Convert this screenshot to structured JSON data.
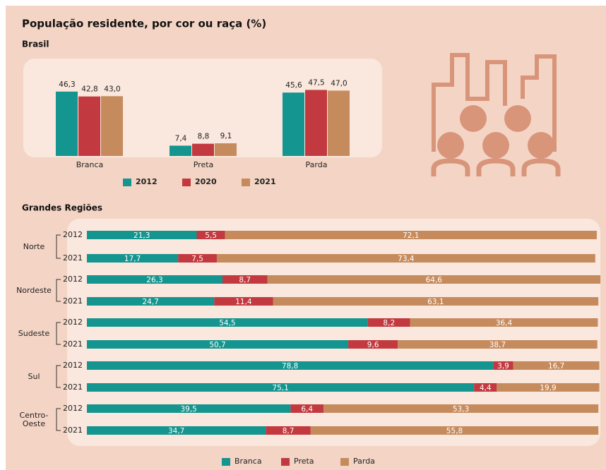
{
  "chart_data": [
    {
      "type": "bar",
      "title": "População residente, por cor ou raça (%)",
      "subtitle": "Brasil",
      "categories": [
        "Branca",
        "Preta",
        "Parda"
      ],
      "series": [
        {
          "name": "2012",
          "color": "#14958f",
          "values": [
            46.3,
            7.4,
            45.6
          ],
          "value_labels": [
            "46,3",
            "7,4",
            "45,6"
          ]
        },
        {
          "name": "2020",
          "color": "#c2393f",
          "values": [
            42.8,
            8.8,
            47.5
          ],
          "value_labels": [
            "42,8",
            "8,8",
            "47,5"
          ]
        },
        {
          "name": "2021",
          "color": "#c68b5d",
          "values": [
            43.0,
            9.1,
            47.0
          ],
          "value_labels": [
            "43,0",
            "9,1",
            "47,0"
          ]
        }
      ]
    },
    {
      "type": "stacked-hbar",
      "subtitle": "Grandes Regiões",
      "regions": [
        "Norte",
        "Nordeste",
        "Sudeste",
        "Sul",
        "Centro-Oeste"
      ],
      "categories": [
        "2012",
        "2021",
        "2012",
        "2021",
        "2012",
        "2021",
        "2012",
        "2021",
        "2012",
        "2021"
      ],
      "series": [
        {
          "name": "Branca",
          "color": "#14958f",
          "values": [
            21.3,
            17.7,
            26.3,
            24.7,
            54.5,
            50.7,
            78.8,
            75.1,
            39.5,
            34.7
          ],
          "value_labels": [
            "21,3",
            "17,7",
            "26,3",
            "24,7",
            "54,5",
            "50,7",
            "78,8",
            "75,1",
            "39,5",
            "34,7"
          ]
        },
        {
          "name": "Preta",
          "color": "#c2393f",
          "values": [
            5.5,
            7.5,
            8.7,
            11.4,
            8.2,
            9.6,
            3.9,
            4.4,
            6.4,
            8.7
          ],
          "value_labels": [
            "5,5",
            "7,5",
            "8,7",
            "11,4",
            "8,2",
            "9,6",
            "3,9",
            "4,4",
            "6,4",
            "8,7"
          ]
        },
        {
          "name": "Parda",
          "color": "#c68b5d",
          "values": [
            72.1,
            73.4,
            64.6,
            63.1,
            36.4,
            38.7,
            16.7,
            19.9,
            53.3,
            55.8
          ],
          "value_labels": [
            "72,1",
            "73,4",
            "64,6",
            "63,1",
            "36,4",
            "38,7",
            "16,7",
            "19,9",
            "53,3",
            "55,8"
          ]
        }
      ]
    }
  ]
}
